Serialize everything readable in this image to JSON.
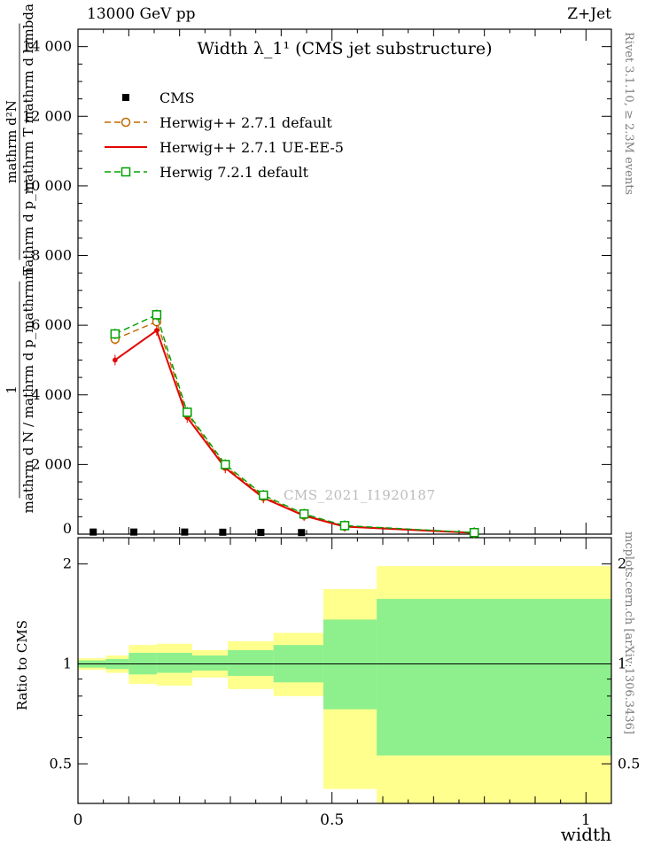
{
  "header": {
    "left": "13000 GeV pp",
    "right": "Z+Jet"
  },
  "right_margin": {
    "top": "Rivet 3.1.10, ≥ 2.3M events",
    "bottom": "mcplots.cern.ch [arXiv:1306.3436]"
  },
  "watermark": "CMS_2021_I1920187",
  "chart_data": [
    {
      "type": "line",
      "title": "Width λ_1¹ (CMS jet substructure)",
      "xlabel": "width",
      "ylabel_parts": {
        "frac1_num": "1",
        "frac1_den": "mathrm d N / mathrm d p_mathrm T",
        "frac2_num": "mathrm d²N",
        "frac2_den": "mathrm d p_mathrm T mathrm d lambda"
      },
      "xlim": [
        0,
        1.05
      ],
      "ylim": [
        0,
        14500
      ],
      "xticks": [
        0,
        0.5,
        1
      ],
      "xtick_labels": [
        "0",
        "0.5",
        "1"
      ],
      "yticks": [
        0,
        2000,
        4000,
        6000,
        8000,
        10000,
        12000,
        14000
      ],
      "ytick_labels": [
        "0",
        "2 000",
        "4 000",
        "6 000",
        "8 000",
        "10 000",
        "12 000",
        "14 000"
      ],
      "x": [
        0.073,
        0.155,
        0.215,
        0.29,
        0.365,
        0.445,
        0.525,
        0.78
      ],
      "series": [
        {
          "name": "CMS",
          "color": "#000000",
          "marker": "filled-square",
          "line": "none",
          "x": [
            0.03,
            0.11,
            0.21,
            0.285,
            0.36,
            0.44,
            0.78
          ],
          "y": [
            60,
            60,
            60,
            55,
            50,
            45,
            20
          ]
        },
        {
          "name": "Herwig++ 2.7.1 default",
          "color": "#c06a00",
          "marker": "open-circle",
          "line": "dashed",
          "y": [
            5600,
            6100,
            3450,
            1950,
            1080,
            550,
            230,
            40
          ]
        },
        {
          "name": "Herwig++ 2.7.1 UE-EE-5",
          "color": "#e10600",
          "marker": "dot",
          "line": "solid",
          "y": [
            5000,
            5850,
            3350,
            1900,
            1040,
            530,
            215,
            35
          ]
        },
        {
          "name": "Herwig 7.2.1 default",
          "color": "#00a000",
          "marker": "open-square",
          "line": "dashed",
          "y": [
            5750,
            6300,
            3500,
            2000,
            1120,
            580,
            245,
            45
          ]
        }
      ]
    },
    {
      "type": "ratio-bands",
      "ylabel": "Ratio to CMS",
      "yscale": "log",
      "ylim": [
        0.38,
        2.4
      ],
      "yticks": [
        0.5,
        1,
        2
      ],
      "ytick_labels": [
        "0.5",
        "1",
        "2"
      ],
      "reference_line": 1,
      "band_colors": {
        "outer": "#ffff8d",
        "inner": "#8df08d"
      },
      "bins": [
        {
          "x0": 0,
          "x1": 0.055,
          "outer": [
            0.96,
            1.04
          ],
          "inner": [
            0.975,
            1.025
          ]
        },
        {
          "x0": 0.055,
          "x1": 0.1,
          "outer": [
            0.94,
            1.06
          ],
          "inner": [
            0.965,
            1.035
          ]
        },
        {
          "x0": 0.1,
          "x1": 0.155,
          "outer": [
            0.87,
            1.14
          ],
          "inner": [
            0.93,
            1.08
          ]
        },
        {
          "x0": 0.155,
          "x1": 0.225,
          "outer": [
            0.86,
            1.15
          ],
          "inner": [
            0.94,
            1.08
          ]
        },
        {
          "x0": 0.225,
          "x1": 0.295,
          "outer": [
            0.91,
            1.1
          ],
          "inner": [
            0.955,
            1.06
          ]
        },
        {
          "x0": 0.295,
          "x1": 0.385,
          "outer": [
            0.84,
            1.17
          ],
          "inner": [
            0.92,
            1.1
          ]
        },
        {
          "x0": 0.385,
          "x1": 0.483,
          "outer": [
            0.8,
            1.24
          ],
          "inner": [
            0.88,
            1.14
          ]
        },
        {
          "x0": 0.483,
          "x1": 0.588,
          "outer": [
            0.42,
            1.68
          ],
          "inner": [
            0.73,
            1.36
          ]
        },
        {
          "x0": 0.588,
          "x1": 1.05,
          "outer": [
            0.38,
            1.97
          ],
          "inner": [
            0.53,
            1.57
          ]
        }
      ]
    }
  ]
}
